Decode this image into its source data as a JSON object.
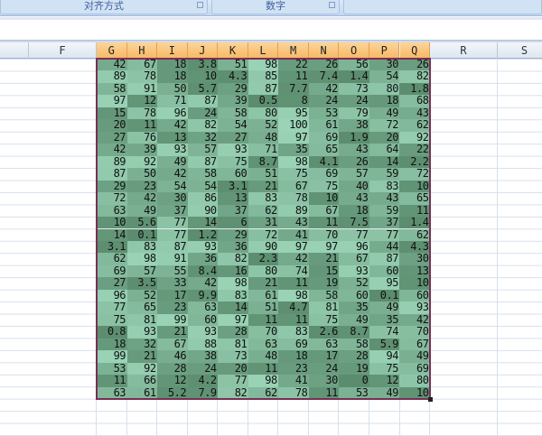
{
  "ribbon": {
    "groups": [
      {
        "label": "对齐方式"
      },
      {
        "label": "数字"
      }
    ]
  },
  "columns": {
    "headers": [
      "F",
      "G",
      "H",
      "I",
      "J",
      "K",
      "L",
      "M",
      "N",
      "O",
      "P",
      "Q",
      "R",
      "S"
    ],
    "selected": [
      "G",
      "H",
      "I",
      "J",
      "K",
      "L",
      "M",
      "N",
      "O",
      "P",
      "Q"
    ]
  },
  "colors": {
    "selected_header": "#f7b763",
    "selection_border": "#7a2f55",
    "scale_low": "#5b8c6e",
    "scale_high": "#9ad3b6"
  },
  "table": {
    "rows": [
      [
        "42",
        "67",
        "18",
        "3.8",
        "51",
        "98",
        "22",
        "26",
        "56",
        "30",
        "26"
      ],
      [
        "89",
        "78",
        "18",
        "10",
        "4.3",
        "85",
        "11",
        "7.4",
        "1.4",
        "54",
        "82"
      ],
      [
        "58",
        "91",
        "50",
        "5.7",
        "29",
        "87",
        "7.7",
        "42",
        "73",
        "80",
        "1.8"
      ],
      [
        "97",
        "12",
        "71",
        "87",
        "39",
        "0.5",
        "8",
        "24",
        "24",
        "18",
        "68"
      ],
      [
        "15",
        "78",
        "96",
        "24",
        "58",
        "80",
        "95",
        "53",
        "79",
        "49",
        "43"
      ],
      [
        "20",
        "11",
        "42",
        "82",
        "54",
        "52",
        "100",
        "61",
        "38",
        "72",
        "62"
      ],
      [
        "27",
        "76",
        "13",
        "32",
        "27",
        "48",
        "97",
        "69",
        "1.9",
        "20",
        "92"
      ],
      [
        "42",
        "39",
        "93",
        "57",
        "93",
        "71",
        "35",
        "65",
        "43",
        "64",
        "22"
      ],
      [
        "89",
        "92",
        "49",
        "87",
        "75",
        "8.7",
        "98",
        "4.1",
        "26",
        "14",
        "2.2"
      ],
      [
        "87",
        "50",
        "42",
        "58",
        "60",
        "51",
        "75",
        "69",
        "57",
        "59",
        "72"
      ],
      [
        "29",
        "23",
        "54",
        "54",
        "3.1",
        "21",
        "67",
        "75",
        "40",
        "83",
        "10"
      ],
      [
        "72",
        "42",
        "30",
        "86",
        "13",
        "83",
        "78",
        "10",
        "43",
        "43",
        "65"
      ],
      [
        "63",
        "49",
        "37",
        "90",
        "37",
        "62",
        "89",
        "67",
        "18",
        "59",
        "11"
      ],
      [
        "10",
        "5.6",
        "77",
        "14",
        "6",
        "31",
        "43",
        "11",
        "7.5",
        "37",
        "1.4"
      ],
      [
        "14",
        "0.1",
        "77",
        "1.2",
        "29",
        "72",
        "41",
        "70",
        "77",
        "77",
        "62"
      ],
      [
        "3.1",
        "83",
        "87",
        "93",
        "36",
        "90",
        "97",
        "97",
        "96",
        "44",
        "4.3"
      ],
      [
        "62",
        "98",
        "91",
        "36",
        "82",
        "2.3",
        "42",
        "21",
        "67",
        "87",
        "30"
      ],
      [
        "69",
        "57",
        "55",
        "8.4",
        "16",
        "80",
        "74",
        "15",
        "93",
        "60",
        "13"
      ],
      [
        "27",
        "3.5",
        "33",
        "42",
        "98",
        "21",
        "11",
        "19",
        "52",
        "95",
        "10"
      ],
      [
        "96",
        "52",
        "17",
        "9.9",
        "83",
        "61",
        "98",
        "58",
        "60",
        "0.1",
        "60"
      ],
      [
        "77",
        "65",
        "23",
        "63",
        "14",
        "51",
        "4.7",
        "81",
        "35",
        "49",
        "93"
      ],
      [
        "75",
        "81",
        "99",
        "60",
        "97",
        "11",
        "11",
        "75",
        "49",
        "35",
        "42"
      ],
      [
        "0.8",
        "93",
        "21",
        "93",
        "28",
        "70",
        "83",
        "2.6",
        "8.7",
        "74",
        "70"
      ],
      [
        "18",
        "32",
        "67",
        "88",
        "81",
        "63",
        "69",
        "63",
        "58",
        "5.9",
        "67"
      ],
      [
        "99",
        "21",
        "46",
        "38",
        "73",
        "48",
        "18",
        "17",
        "28",
        "94",
        "49"
      ],
      [
        "53",
        "92",
        "28",
        "24",
        "20",
        "11",
        "23",
        "24",
        "19",
        "75",
        "69"
      ],
      [
        "11",
        "66",
        "12",
        "4.2",
        "77",
        "98",
        "41",
        "30",
        "0",
        "12",
        "80"
      ],
      [
        "63",
        "61",
        "5.2",
        "7.9",
        "82",
        "62",
        "78",
        "11",
        "53",
        "49",
        "10"
      ]
    ]
  }
}
